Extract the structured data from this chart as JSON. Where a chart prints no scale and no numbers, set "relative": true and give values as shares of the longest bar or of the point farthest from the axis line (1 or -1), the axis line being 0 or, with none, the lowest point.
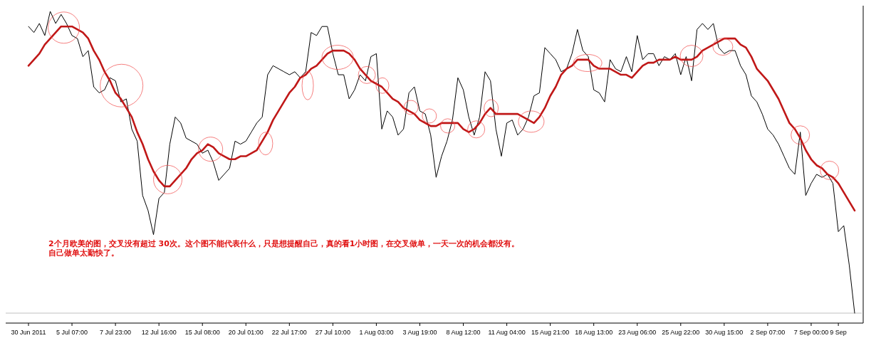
{
  "chart_data": {
    "type": "line",
    "relative": true,
    "categories": [
      "30 Jun 2011",
      null,
      null,
      null,
      null,
      null,
      null,
      null,
      "5 Jul 07:00",
      null,
      null,
      null,
      null,
      null,
      null,
      null,
      "7 Jul 23:00",
      null,
      null,
      null,
      null,
      null,
      null,
      null,
      "12 Jul 16:00",
      null,
      null,
      null,
      null,
      null,
      null,
      null,
      "15 Jul 08:00",
      null,
      null,
      null,
      null,
      null,
      null,
      null,
      "20 Jul 01:00",
      null,
      null,
      null,
      null,
      null,
      null,
      null,
      "22 Jul 17:00",
      null,
      null,
      null,
      null,
      null,
      null,
      null,
      "27 Jul 10:00",
      null,
      null,
      null,
      null,
      null,
      null,
      null,
      "1 Aug 03:00",
      null,
      null,
      null,
      null,
      null,
      null,
      null,
      "3 Aug 19:00",
      null,
      null,
      null,
      null,
      null,
      null,
      null,
      "8 Aug 12:00",
      null,
      null,
      null,
      null,
      null,
      null,
      null,
      "11 Aug 04:00",
      null,
      null,
      null,
      null,
      null,
      null,
      null,
      "15 Aug 21:00",
      null,
      null,
      null,
      null,
      null,
      null,
      null,
      "18 Aug 13:00",
      null,
      null,
      null,
      null,
      null,
      null,
      null,
      "23 Aug 06:00",
      null,
      null,
      null,
      null,
      null,
      null,
      null,
      "25 Aug 22:00",
      null,
      null,
      null,
      null,
      null,
      null,
      null,
      "30 Aug 15:00",
      null,
      null,
      null,
      null,
      null,
      null,
      null,
      "2 Sep 07:00",
      null,
      null,
      null,
      null,
      null,
      null,
      null,
      "7 Sep 00:00",
      null,
      null,
      null,
      null,
      "9 Sep",
      null,
      null,
      null
    ],
    "series": [
      {
        "color": "#000000",
        "values": [
          0.95,
          0.93,
          0.96,
          0.92,
          1.0,
          0.96,
          0.99,
          0.96,
          0.92,
          0.91,
          0.85,
          0.87,
          0.75,
          0.73,
          0.74,
          0.78,
          0.77,
          0.7,
          0.71,
          0.61,
          0.57,
          0.39,
          0.34,
          0.26,
          0.38,
          0.4,
          0.56,
          0.65,
          0.63,
          0.58,
          0.57,
          0.56,
          0.53,
          0.54,
          0.5,
          0.44,
          0.46,
          0.48,
          0.57,
          0.56,
          0.57,
          0.6,
          0.63,
          0.65,
          0.79,
          0.82,
          0.81,
          0.8,
          0.79,
          0.8,
          0.78,
          0.8,
          0.93,
          0.92,
          0.95,
          0.95,
          0.86,
          0.79,
          0.79,
          0.71,
          0.74,
          0.79,
          0.77,
          0.85,
          0.86,
          0.61,
          0.67,
          0.65,
          0.59,
          0.61,
          0.73,
          0.75,
          0.67,
          0.66,
          0.59,
          0.45,
          0.52,
          0.57,
          0.64,
          0.78,
          0.74,
          0.65,
          0.59,
          0.65,
          0.8,
          0.77,
          0.61,
          0.52,
          0.63,
          0.64,
          0.59,
          0.61,
          0.65,
          0.72,
          0.73,
          0.88,
          0.86,
          0.84,
          0.8,
          0.81,
          0.86,
          0.94,
          0.87,
          0.85,
          0.74,
          0.73,
          0.7,
          0.84,
          0.81,
          0.8,
          0.85,
          0.8,
          0.92,
          0.84,
          0.86,
          0.86,
          0.82,
          0.85,
          0.84,
          0.86,
          0.79,
          0.85,
          0.77,
          0.94,
          0.96,
          0.94,
          0.96,
          0.88,
          0.86,
          0.87,
          0.87,
          0.82,
          0.79,
          0.72,
          0.7,
          0.66,
          0.61,
          0.59,
          0.56,
          0.52,
          0.48,
          0.46,
          0.6,
          0.39,
          0.43,
          0.46,
          0.45,
          0.46,
          0.43,
          0.27,
          0.29,
          0.16,
          0.0
        ]
      },
      {
        "color": "#c01818",
        "values": [
          0.82,
          0.84,
          0.86,
          0.89,
          0.91,
          0.93,
          0.95,
          0.95,
          0.95,
          0.94,
          0.93,
          0.91,
          0.87,
          0.84,
          0.8,
          0.77,
          0.73,
          0.71,
          0.68,
          0.65,
          0.6,
          0.56,
          0.51,
          0.47,
          0.44,
          0.42,
          0.42,
          0.44,
          0.46,
          0.48,
          0.51,
          0.53,
          0.54,
          0.56,
          0.55,
          0.53,
          0.52,
          0.51,
          0.51,
          0.52,
          0.52,
          0.53,
          0.54,
          0.57,
          0.6,
          0.64,
          0.67,
          0.7,
          0.73,
          0.75,
          0.78,
          0.79,
          0.81,
          0.82,
          0.84,
          0.86,
          0.87,
          0.87,
          0.87,
          0.86,
          0.84,
          0.81,
          0.79,
          0.77,
          0.76,
          0.75,
          0.73,
          0.71,
          0.7,
          0.68,
          0.67,
          0.66,
          0.64,
          0.63,
          0.62,
          0.62,
          0.63,
          0.63,
          0.63,
          0.63,
          0.61,
          0.6,
          0.61,
          0.63,
          0.66,
          0.68,
          0.66,
          0.66,
          0.66,
          0.66,
          0.66,
          0.65,
          0.64,
          0.63,
          0.65,
          0.68,
          0.72,
          0.75,
          0.79,
          0.81,
          0.82,
          0.84,
          0.84,
          0.84,
          0.82,
          0.81,
          0.81,
          0.81,
          0.8,
          0.79,
          0.79,
          0.78,
          0.8,
          0.82,
          0.83,
          0.83,
          0.84,
          0.84,
          0.84,
          0.85,
          0.84,
          0.84,
          0.84,
          0.85,
          0.87,
          0.88,
          0.89,
          0.9,
          0.91,
          0.91,
          0.91,
          0.89,
          0.88,
          0.85,
          0.81,
          0.79,
          0.77,
          0.74,
          0.71,
          0.67,
          0.63,
          0.61,
          0.58,
          0.54,
          0.51,
          0.49,
          0.48,
          0.46,
          0.45,
          0.43,
          0.4,
          0.37,
          0.34
        ]
      }
    ],
    "ref_lines": [
      {
        "axis": "y",
        "value": 0,
        "color": "#c0c0c0"
      }
    ],
    "annotations": [
      "2个月欧美的图，交叉没有超过 30次。这个图不能代表什么，只是想提醒自己，真的看1小时图，在交叉做单，一天一次的机会都没有。",
      "自己做单太勤快了。"
    ]
  }
}
